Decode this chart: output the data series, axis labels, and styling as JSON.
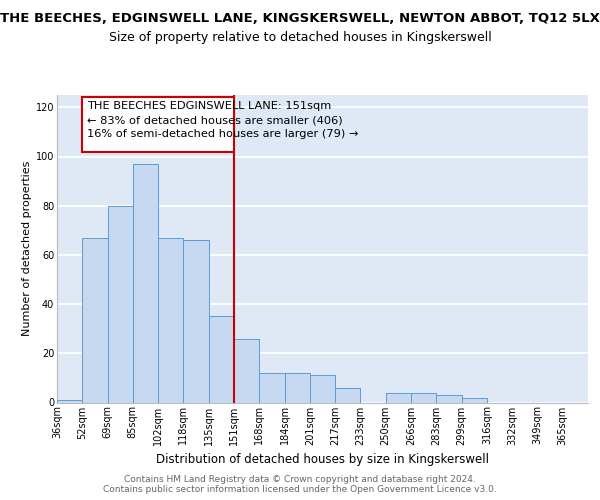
{
  "title_main": "THE BEECHES, EDGINSWELL LANE, KINGSKERSWELL, NEWTON ABBOT, TQ12 5LX",
  "title_sub": "Size of property relative to detached houses in Kingskerswell",
  "xlabel": "Distribution of detached houses by size in Kingskerswell",
  "ylabel": "Number of detached properties",
  "bar_labels": [
    "36sqm",
    "52sqm",
    "69sqm",
    "85sqm",
    "102sqm",
    "118sqm",
    "135sqm",
    "151sqm",
    "168sqm",
    "184sqm",
    "201sqm",
    "217sqm",
    "233sqm",
    "250sqm",
    "266sqm",
    "283sqm",
    "299sqm",
    "316sqm",
    "332sqm",
    "349sqm",
    "365sqm"
  ],
  "bar_values": [
    1,
    67,
    80,
    97,
    67,
    66,
    35,
    26,
    12,
    12,
    11,
    6,
    0,
    4,
    4,
    3,
    2,
    0,
    0,
    0,
    0
  ],
  "bar_color": "#c6d9f0",
  "bar_edge_color": "#5b9bd5",
  "vline_label_idx": 7,
  "vline_color": "#cc0000",
  "annotation_line1": "THE BEECHES EDGINSWELL LANE: 151sqm",
  "annotation_line2": "← 83% of detached houses are smaller (406)",
  "annotation_line3": "16% of semi-detached houses are larger (79) →",
  "annotation_box_color": "#cc0000",
  "annotation_fill": "white",
  "ylim": [
    0,
    125
  ],
  "yticks": [
    0,
    20,
    40,
    60,
    80,
    100,
    120
  ],
  "background_color": "#dfe8f5",
  "grid_color": "#ffffff",
  "footer_text": "Contains HM Land Registry data © Crown copyright and database right 2024.\nContains public sector information licensed under the Open Government Licence v3.0.",
  "title_main_fontsize": 9.5,
  "title_sub_fontsize": 9,
  "xlabel_fontsize": 8.5,
  "ylabel_fontsize": 8,
  "tick_fontsize": 7,
  "annotation_fontsize": 8.2,
  "footer_fontsize": 6.5
}
